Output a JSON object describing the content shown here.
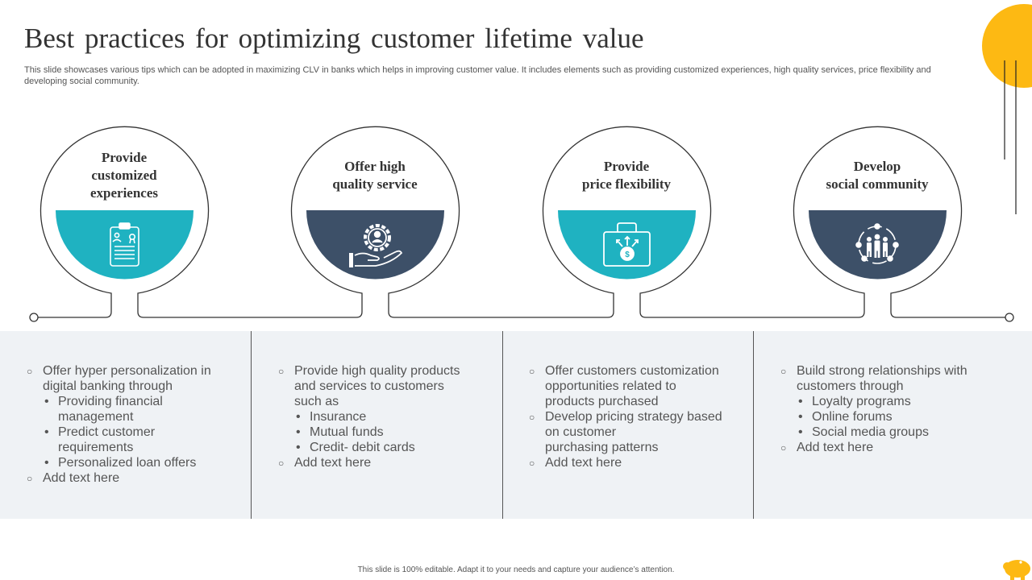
{
  "title": "Best practices for optimizing customer lifetime value",
  "subtitle": "This slide showcases various tips which can be adopted in maximizing CLV in banks which helps in improving customer value. It includes elements such as providing customized experiences, high quality services, price flexibility and developing social community.",
  "colors": {
    "teal": "#1fb2c1",
    "navy": "#3d5068",
    "yellow": "#fdb913",
    "panel": "#eff2f5"
  },
  "steps": [
    {
      "title_lines": [
        "Provide",
        "customized",
        "experiences"
      ],
      "icon": "clipboard-icon",
      "color": "#1fb2c1",
      "points": [
        {
          "text_lines": [
            "Offer hyper personalization in",
            "digital banking through"
          ],
          "sub": [
            {
              "lines": [
                "Providing financial",
                "management"
              ]
            },
            {
              "lines": [
                "Predict customer",
                "requirements"
              ]
            },
            {
              "lines": [
                "Personalized loan offers"
              ]
            }
          ]
        },
        {
          "text_lines": [
            "Add text here"
          ],
          "sub": []
        }
      ]
    },
    {
      "title_lines": [
        "Offer high",
        "quality service"
      ],
      "icon": "gear-hand-icon",
      "color": "#3d5068",
      "points": [
        {
          "text_lines": [
            "Provide high quality products",
            "and services to customers",
            "such as"
          ],
          "sub": [
            {
              "lines": [
                "Insurance"
              ]
            },
            {
              "lines": [
                "Mutual funds"
              ]
            },
            {
              "lines": [
                "Credit- debit cards"
              ]
            }
          ]
        },
        {
          "text_lines": [
            "Add text here"
          ],
          "sub": []
        }
      ]
    },
    {
      "title_lines": [
        "Provide",
        "price flexibility"
      ],
      "icon": "money-briefcase-icon",
      "color": "#1fb2c1",
      "points": [
        {
          "text_lines": [
            "Offer customers customization",
            "opportunities related to",
            "products purchased"
          ],
          "sub": []
        },
        {
          "text_lines": [
            "Develop pricing strategy based",
            "on customer",
            "purchasing patterns"
          ],
          "sub": []
        },
        {
          "text_lines": [
            "Add text here"
          ],
          "sub": []
        }
      ]
    },
    {
      "title_lines": [
        "Develop",
        "social community"
      ],
      "icon": "community-network-icon",
      "color": "#3d5068",
      "points": [
        {
          "text_lines": [
            "Build strong relationships with",
            "customers through"
          ],
          "sub": [
            {
              "lines": [
                "Loyalty programs"
              ]
            },
            {
              "lines": [
                "Online forums"
              ]
            },
            {
              "lines": [
                "Social media groups"
              ]
            }
          ]
        },
        {
          "text_lines": [
            "Add text here"
          ],
          "sub": []
        }
      ]
    }
  ],
  "footer": "This slide is 100% editable. Adapt it to your needs and capture your audience’s attention."
}
